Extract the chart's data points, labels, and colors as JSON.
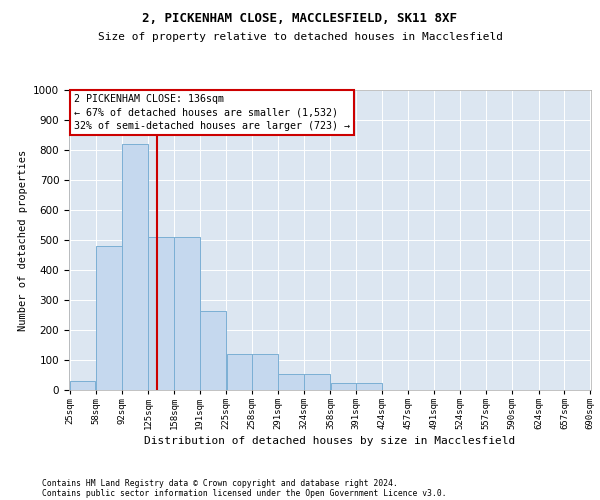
{
  "title1": "2, PICKENHAM CLOSE, MACCLESFIELD, SK11 8XF",
  "title2": "Size of property relative to detached houses in Macclesfield",
  "xlabel": "Distribution of detached houses by size in Macclesfield",
  "ylabel": "Number of detached properties",
  "footnote1": "Contains HM Land Registry data © Crown copyright and database right 2024.",
  "footnote2": "Contains public sector information licensed under the Open Government Licence v3.0.",
  "ann_line1": "2 PICKENHAM CLOSE: 136sqm",
  "ann_line2": "← 67% of detached houses are smaller (1,532)",
  "ann_line3": "32% of semi-detached houses are larger (723) →",
  "bar_edges": [
    25,
    58,
    92,
    125,
    158,
    191,
    225,
    258,
    291,
    324,
    358,
    391,
    424,
    457,
    491,
    524,
    557,
    590,
    624,
    657,
    690
  ],
  "bar_heights": [
    30,
    480,
    820,
    510,
    510,
    265,
    120,
    120,
    55,
    55,
    25,
    25,
    0,
    0,
    0,
    0,
    0,
    0,
    0,
    0
  ],
  "vline_x": 136,
  "bar_color": "#c5d8ee",
  "bar_edge_color": "#7bafd4",
  "vline_color": "#cc0000",
  "bg_color": "#dce6f1",
  "ylim": [
    0,
    1000
  ],
  "yticks": [
    0,
    100,
    200,
    300,
    400,
    500,
    600,
    700,
    800,
    900,
    1000
  ],
  "tick_labels": [
    "25sqm",
    "58sqm",
    "92sqm",
    "125sqm",
    "158sqm",
    "191sqm",
    "225sqm",
    "258sqm",
    "291sqm",
    "324sqm",
    "358sqm",
    "391sqm",
    "424sqm",
    "457sqm",
    "491sqm",
    "524sqm",
    "557sqm",
    "590sqm",
    "624sqm",
    "657sqm",
    "690sqm"
  ]
}
